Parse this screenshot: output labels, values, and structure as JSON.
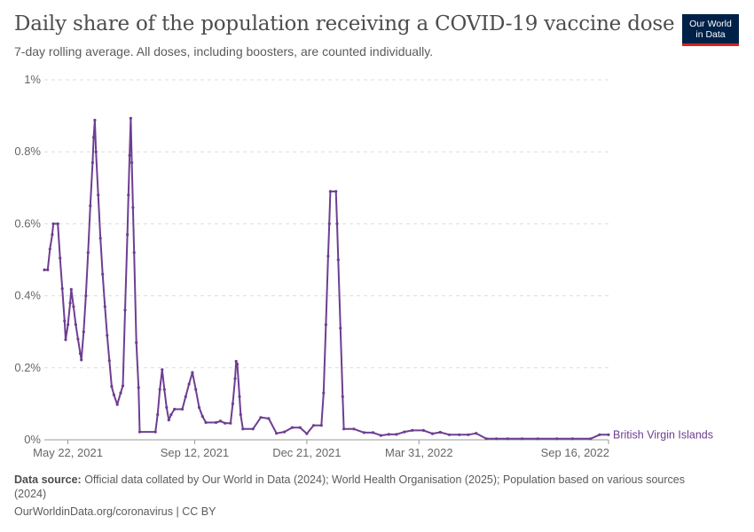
{
  "header": {
    "title": "Daily share of the population receiving a COVID-19 vaccine dose",
    "subtitle": "7-day rolling average. All doses, including boosters, are counted individually.",
    "logo_line1": "Our World",
    "logo_line2": "in Data"
  },
  "footer": {
    "source_label": "Data source:",
    "source_text": " Official data collated by Our World in Data (2024); World Health Organisation (2025); Population based on various sources (2024)",
    "url_license": "OurWorldinData.org/coronavirus | CC BY"
  },
  "colors": {
    "series": "#6d3e91",
    "grid": "#dddddd",
    "axis": "#666666",
    "logo_bg": "#002147",
    "logo_accent": "#ce261e"
  },
  "chart_data": {
    "type": "line",
    "ylim": [
      0,
      1
    ],
    "y_ticks": [
      0,
      0.2,
      0.4,
      0.6,
      0.8,
      1
    ],
    "y_tick_labels": [
      "0%",
      "0.2%",
      "0.4%",
      "0.6%",
      "0.8%",
      "1%"
    ],
    "x_domain": [
      "2021-05-01",
      "2022-09-16"
    ],
    "x_ticks": [
      "2021-05-22",
      "2021-09-12",
      "2021-12-21",
      "2022-03-31",
      "2022-09-16"
    ],
    "x_tick_labels": [
      "May 22, 2021",
      "Sep 12, 2021",
      "Dec 21, 2021",
      "Mar 31, 2022",
      "Sep 16, 2022"
    ],
    "grid": true,
    "series": [
      {
        "name": "British Virgin Islands",
        "points": [
          [
            "2021-05-01",
            0.472
          ],
          [
            "2021-05-04",
            0.472
          ],
          [
            "2021-05-06",
            0.53
          ],
          [
            "2021-05-08",
            0.57
          ],
          [
            "2021-05-09",
            0.6
          ],
          [
            "2021-05-13",
            0.6
          ],
          [
            "2021-05-15",
            0.505
          ],
          [
            "2021-05-17",
            0.42
          ],
          [
            "2021-05-19",
            0.33
          ],
          [
            "2021-05-20",
            0.278
          ],
          [
            "2021-05-22",
            0.32
          ],
          [
            "2021-05-24",
            0.38
          ],
          [
            "2021-05-25",
            0.418
          ],
          [
            "2021-05-27",
            0.37
          ],
          [
            "2021-05-29",
            0.32
          ],
          [
            "2021-05-31",
            0.28
          ],
          [
            "2021-06-02",
            0.24
          ],
          [
            "2021-06-03",
            0.222
          ],
          [
            "2021-06-05",
            0.3
          ],
          [
            "2021-06-07",
            0.4
          ],
          [
            "2021-06-09",
            0.52
          ],
          [
            "2021-06-11",
            0.65
          ],
          [
            "2021-06-13",
            0.77
          ],
          [
            "2021-06-14",
            0.84
          ],
          [
            "2021-06-15",
            0.888
          ],
          [
            "2021-06-16",
            0.8
          ],
          [
            "2021-06-18",
            0.68
          ],
          [
            "2021-06-20",
            0.56
          ],
          [
            "2021-06-22",
            0.46
          ],
          [
            "2021-06-24",
            0.37
          ],
          [
            "2021-06-26",
            0.29
          ],
          [
            "2021-06-28",
            0.22
          ],
          [
            "2021-06-30",
            0.148
          ],
          [
            "2021-07-02",
            0.125
          ],
          [
            "2021-07-05",
            0.098
          ],
          [
            "2021-07-08",
            0.13
          ],
          [
            "2021-07-10",
            0.15
          ],
          [
            "2021-07-12",
            0.36
          ],
          [
            "2021-07-14",
            0.57
          ],
          [
            "2021-07-15",
            0.68
          ],
          [
            "2021-07-16",
            0.79
          ],
          [
            "2021-07-17",
            0.893
          ],
          [
            "2021-07-18",
            0.77
          ],
          [
            "2021-07-19",
            0.645
          ],
          [
            "2021-07-20",
            0.52
          ],
          [
            "2021-07-22",
            0.27
          ],
          [
            "2021-07-24",
            0.145
          ],
          [
            "2021-07-25",
            0.022
          ],
          [
            "2021-08-08",
            0.022
          ],
          [
            "2021-08-10",
            0.07
          ],
          [
            "2021-08-12",
            0.14
          ],
          [
            "2021-08-14",
            0.195
          ],
          [
            "2021-08-16",
            0.14
          ],
          [
            "2021-08-18",
            0.09
          ],
          [
            "2021-08-20",
            0.055
          ],
          [
            "2021-08-22",
            0.07
          ],
          [
            "2021-08-25",
            0.085
          ],
          [
            "2021-09-01",
            0.085
          ],
          [
            "2021-09-04",
            0.12
          ],
          [
            "2021-09-07",
            0.155
          ],
          [
            "2021-09-10",
            0.187
          ],
          [
            "2021-09-13",
            0.14
          ],
          [
            "2021-09-16",
            0.09
          ],
          [
            "2021-09-19",
            0.065
          ],
          [
            "2021-09-22",
            0.048
          ],
          [
            "2021-10-01",
            0.048
          ],
          [
            "2021-10-05",
            0.052
          ],
          [
            "2021-10-09",
            0.046
          ],
          [
            "2021-10-14",
            0.046
          ],
          [
            "2021-10-16",
            0.1
          ],
          [
            "2021-10-18",
            0.17
          ],
          [
            "2021-10-19",
            0.218
          ],
          [
            "2021-10-20",
            0.21
          ],
          [
            "2021-10-22",
            0.12
          ],
          [
            "2021-10-23",
            0.07
          ],
          [
            "2021-10-25",
            0.03
          ],
          [
            "2021-11-03",
            0.03
          ],
          [
            "2021-11-10",
            0.062
          ],
          [
            "2021-11-17",
            0.059
          ],
          [
            "2021-11-24",
            0.018
          ],
          [
            "2021-12-01",
            0.022
          ],
          [
            "2021-12-08",
            0.034
          ],
          [
            "2021-12-15",
            0.034
          ],
          [
            "2021-12-21",
            0.017
          ],
          [
            "2021-12-27",
            0.04
          ],
          [
            "2022-01-03",
            0.04
          ],
          [
            "2022-01-05",
            0.13
          ],
          [
            "2022-01-07",
            0.32
          ],
          [
            "2022-01-09",
            0.51
          ],
          [
            "2022-01-10",
            0.6
          ],
          [
            "2022-01-11",
            0.69
          ],
          [
            "2022-01-16",
            0.69
          ],
          [
            "2022-01-17",
            0.6
          ],
          [
            "2022-01-18",
            0.5
          ],
          [
            "2022-01-20",
            0.31
          ],
          [
            "2022-01-22",
            0.12
          ],
          [
            "2022-01-23",
            0.03
          ],
          [
            "2022-02-01",
            0.03
          ],
          [
            "2022-02-10",
            0.02
          ],
          [
            "2022-02-18",
            0.02
          ],
          [
            "2022-02-25",
            0.012
          ],
          [
            "2022-03-04",
            0.015
          ],
          [
            "2022-03-11",
            0.015
          ],
          [
            "2022-03-18",
            0.022
          ],
          [
            "2022-03-25",
            0.026
          ],
          [
            "2022-04-04",
            0.026
          ],
          [
            "2022-04-12",
            0.017
          ],
          [
            "2022-04-19",
            0.021
          ],
          [
            "2022-04-27",
            0.014
          ],
          [
            "2022-05-06",
            0.014
          ],
          [
            "2022-05-14",
            0.014
          ],
          [
            "2022-05-21",
            0.018
          ],
          [
            "2022-05-30",
            0.003
          ],
          [
            "2022-06-08",
            0.003
          ],
          [
            "2022-06-18",
            0.003
          ],
          [
            "2022-07-01",
            0.003
          ],
          [
            "2022-07-15",
            0.003
          ],
          [
            "2022-08-01",
            0.003
          ],
          [
            "2022-08-15",
            0.003
          ],
          [
            "2022-08-31",
            0.003
          ],
          [
            "2022-09-08",
            0.014
          ],
          [
            "2022-09-16",
            0.014
          ]
        ]
      }
    ]
  }
}
